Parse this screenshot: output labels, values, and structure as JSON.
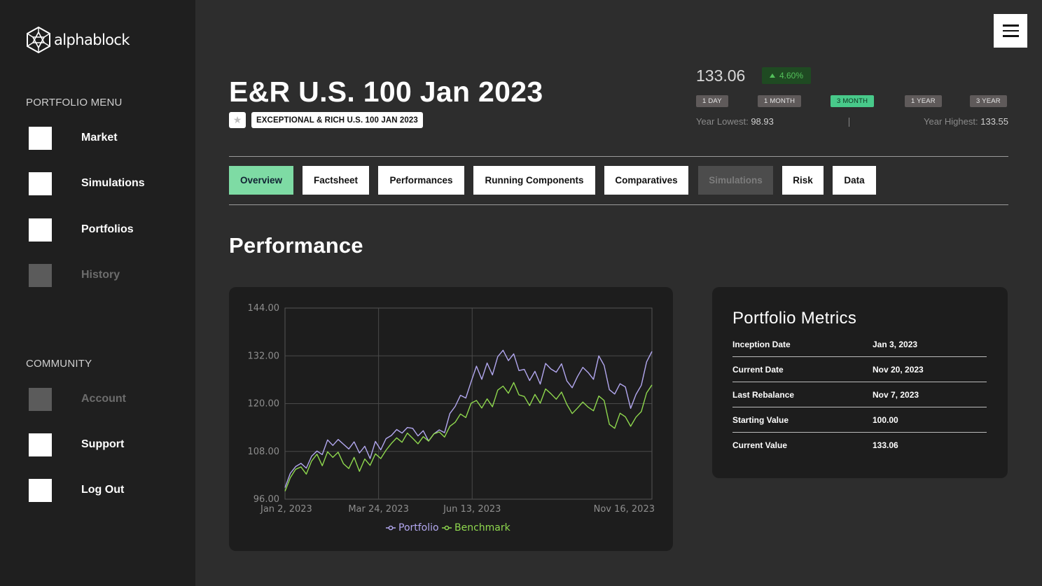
{
  "brand": {
    "name": "alphablock"
  },
  "sidebar": {
    "portfolio_menu_title": "PORTFOLIO MENU",
    "portfolio_items": [
      {
        "label": "Market",
        "enabled": true
      },
      {
        "label": "Simulations",
        "enabled": true
      },
      {
        "label": "Portfolios",
        "enabled": true
      },
      {
        "label": "History",
        "enabled": false
      }
    ],
    "community_title": "COMMUNITY",
    "community_items": [
      {
        "label": "Account",
        "enabled": false
      },
      {
        "label": "Support",
        "enabled": true
      },
      {
        "label": "Log Out",
        "enabled": true
      }
    ]
  },
  "header": {
    "title": "E&R U.S. 100 Jan 2023",
    "subtitle": "EXCEPTIONAL & RICH U.S. 100 JAN 2023",
    "price": "133.06",
    "change": "4.60%",
    "change_direction": "up",
    "ranges": [
      "1 DAY",
      "1 MONTH",
      "3 MONTH",
      "1 YEAR",
      "3 YEAR"
    ],
    "active_range": "3 MONTH",
    "year_lowest_label": "Year Lowest:",
    "year_lowest_value": "98.93",
    "year_highest_label": "Year Highest:",
    "year_highest_value": "133.55"
  },
  "tabs": [
    {
      "label": "Overview",
      "state": "active"
    },
    {
      "label": "Factsheet",
      "state": "normal"
    },
    {
      "label": "Performances",
      "state": "normal"
    },
    {
      "label": "Running Components",
      "state": "normal"
    },
    {
      "label": "Comparatives",
      "state": "normal"
    },
    {
      "label": "Simulations",
      "state": "disabled"
    },
    {
      "label": "Risk",
      "state": "normal"
    },
    {
      "label": "Data",
      "state": "normal"
    }
  ],
  "performance": {
    "heading": "Performance"
  },
  "metrics": {
    "title": "Portfolio Metrics",
    "rows": [
      {
        "label": "Inception Date",
        "value": "Jan 3, 2023"
      },
      {
        "label": "Current Date",
        "value": "Nov 20, 2023"
      },
      {
        "label": "Last Rebalance",
        "value": "Nov 7, 2023"
      },
      {
        "label": "Starting Value",
        "value": "100.00"
      },
      {
        "label": "Current Value",
        "value": "133.06"
      }
    ]
  },
  "colors": {
    "accent": "#7edba4",
    "portfolio_series": "#b3a8f0",
    "benchmark_series": "#8fd84e",
    "positive": "#53c05a"
  },
  "chart_data": {
    "type": "line",
    "title": "",
    "xlabel": "",
    "ylabel": "",
    "ylim": [
      96,
      144
    ],
    "y_ticks": [
      "144.00",
      "132.00",
      "120.00",
      "108.00",
      "96.00"
    ],
    "x_ticks": [
      "Jan 2, 2023",
      "Mar 24, 2023",
      "Jun 13, 2023",
      "Nov 16, 2023"
    ],
    "legend": "bottom-center",
    "grid": true,
    "series": [
      {
        "name": "Portfolio",
        "color": "#b3a8f0",
        "values": [
          98.9,
          102.5,
          104.2,
          105.0,
          103.8,
          106.8,
          108.1,
          107.2,
          110.9,
          109.5,
          111.0,
          109.8,
          108.6,
          110.4,
          107.6,
          109.3,
          106.2,
          110.5,
          108.4,
          111.2,
          112.0,
          113.5,
          112.6,
          114.0,
          113.8,
          111.9,
          113.2,
          110.6,
          112.4,
          113.4,
          112.7,
          117.5,
          119.3,
          122.1,
          121.4,
          125.5,
          129.4,
          126.1,
          130.2,
          127.2,
          131.8,
          133.4,
          130.8,
          132.5,
          128.3,
          128.6,
          125.8,
          128.1,
          124.9,
          130.1,
          128.7,
          127.9,
          130.0,
          125.7,
          124.0,
          126.8,
          129.1,
          127.8,
          126.1,
          132.0,
          129.6,
          123.5,
          122.4,
          125.0,
          124.2,
          118.8,
          122.3,
          124.6,
          130.5,
          133.1
        ]
      },
      {
        "name": "Benchmark",
        "color": "#8fd84e",
        "values": [
          98.0,
          101.4,
          103.5,
          104.1,
          102.3,
          105.6,
          107.3,
          104.4,
          107.9,
          106.5,
          107.8,
          104.9,
          103.7,
          106.5,
          103.0,
          106.1,
          104.5,
          107.4,
          106.2,
          108.3,
          110.0,
          111.4,
          110.3,
          112.6,
          111.3,
          109.9,
          111.7,
          110.6,
          112.4,
          112.9,
          111.6,
          114.3,
          115.3,
          117.4,
          116.5,
          120.1,
          120.8,
          118.9,
          121.2,
          119.2,
          123.4,
          124.4,
          122.6,
          125.3,
          122.2,
          121.8,
          119.5,
          122.3,
          120.1,
          123.7,
          122.5,
          121.1,
          122.9,
          119.8,
          117.5,
          118.9,
          120.4,
          119.1,
          118.2,
          121.9,
          120.8,
          114.8,
          113.8,
          117.6,
          116.7,
          114.3,
          116.6,
          118.0,
          122.7,
          124.7
        ]
      }
    ]
  }
}
